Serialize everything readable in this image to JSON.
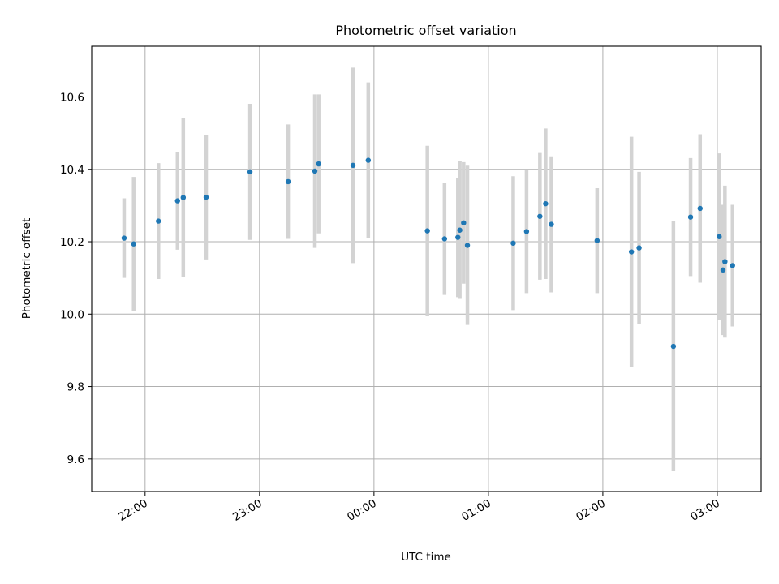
{
  "chart_data": {
    "type": "scatter",
    "title": "Photometric offset variation",
    "xlabel": "UTC time",
    "ylabel": "Photometric offset",
    "x_axis_type": "time",
    "xlim": [
      "21:32",
      "03:23"
    ],
    "ylim": [
      9.51,
      10.74
    ],
    "yticks": [
      9.6,
      9.8,
      10.0,
      10.2,
      10.4,
      10.6
    ],
    "ytick_labels": [
      "9.6",
      "9.8",
      "10.0",
      "10.2",
      "10.4",
      "10.6"
    ],
    "xticks": [
      "22:00",
      "23:00",
      "00:00",
      "01:00",
      "02:00",
      "03:00"
    ],
    "xtick_labels": [
      "22:00",
      "23:00",
      "00:00",
      "01:00",
      "02:00",
      "03:00"
    ],
    "grid": true,
    "colors": {
      "point": "#1f77b4",
      "errorbar": "#d3d3d3",
      "grid": "#b0b0b0"
    },
    "points": [
      {
        "t": "21:49",
        "y": 10.21,
        "err": 0.11
      },
      {
        "t": "21:54",
        "y": 10.194,
        "err": 0.185
      },
      {
        "t": "22:07",
        "y": 10.257,
        "err": 0.16
      },
      {
        "t": "22:17",
        "y": 10.313,
        "err": 0.135
      },
      {
        "t": "22:20",
        "y": 10.322,
        "err": 0.22
      },
      {
        "t": "22:32",
        "y": 10.323,
        "err": 0.172
      },
      {
        "t": "22:55",
        "y": 10.393,
        "err": 0.188
      },
      {
        "t": "23:15",
        "y": 10.366,
        "err": 0.158
      },
      {
        "t": "23:29",
        "y": 10.395,
        "err": 0.212
      },
      {
        "t": "23:31",
        "y": 10.415,
        "err": 0.192
      },
      {
        "t": "23:49",
        "y": 10.411,
        "err": 0.27
      },
      {
        "t": "23:57",
        "y": 10.425,
        "err": 0.215
      },
      {
        "t": "00:28",
        "y": 10.23,
        "err": 0.235
      },
      {
        "t": "00:37",
        "y": 10.208,
        "err": 0.155
      },
      {
        "t": "00:44",
        "y": 10.212,
        "err": 0.165
      },
      {
        "t": "00:45",
        "y": 10.232,
        "err": 0.19
      },
      {
        "t": "00:47",
        "y": 10.252,
        "err": 0.168
      },
      {
        "t": "00:49",
        "y": 10.19,
        "err": 0.22
      },
      {
        "t": "01:13",
        "y": 10.196,
        "err": 0.185
      },
      {
        "t": "01:20",
        "y": 10.228,
        "err": 0.17
      },
      {
        "t": "01:27",
        "y": 10.27,
        "err": 0.175
      },
      {
        "t": "01:30",
        "y": 10.305,
        "err": 0.208
      },
      {
        "t": "01:33",
        "y": 10.248,
        "err": 0.188
      },
      {
        "t": "01:57",
        "y": 10.203,
        "err": 0.145
      },
      {
        "t": "02:15",
        "y": 10.172,
        "err": 0.318
      },
      {
        "t": "02:19",
        "y": 10.183,
        "err": 0.21
      },
      {
        "t": "02:37",
        "y": 9.911,
        "err": 0.345
      },
      {
        "t": "02:46",
        "y": 10.268,
        "err": 0.163
      },
      {
        "t": "02:51",
        "y": 10.292,
        "err": 0.205
      },
      {
        "t": "03:01",
        "y": 10.214,
        "err": 0.23
      },
      {
        "t": "03:03",
        "y": 10.122,
        "err": 0.18
      },
      {
        "t": "03:04",
        "y": 10.145,
        "err": 0.21
      },
      {
        "t": "03:08",
        "y": 10.134,
        "err": 0.168
      }
    ]
  }
}
